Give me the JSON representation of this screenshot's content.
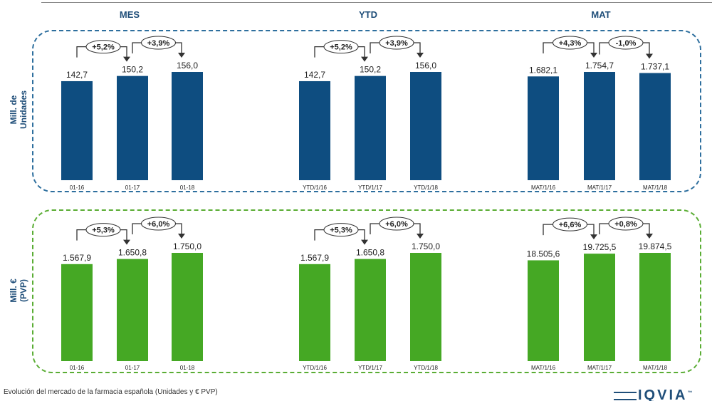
{
  "column_headers": [
    "MES",
    "YTD",
    "MAT"
  ],
  "row_labels": {
    "units": [
      "Mill. de",
      "Unidades"
    ],
    "pvp": [
      "Mill. €",
      "(PVP)"
    ]
  },
  "footer": {
    "caption": "Evolución del mercado de la farmacia española (Unidades y € PVP)"
  },
  "logo": {
    "text": "IQVIA",
    "tm": "™"
  },
  "colors": {
    "units_bar": "#0e4d80",
    "pvp_bar": "#45a824",
    "units_frame": "#2e6f9e",
    "pvp_frame": "#5aad34",
    "header_text": "#1f4e79"
  },
  "chart_data": [
    {
      "type": "bar",
      "row": "units",
      "panel": "MES",
      "categories": [
        "01-16",
        "01-17",
        "01-18"
      ],
      "values": [
        142.7,
        150.2,
        156.0
      ],
      "value_labels": [
        "142,7",
        "150,2",
        "156,0"
      ],
      "growth_labels": [
        "+5,2%",
        "+3,9%"
      ]
    },
    {
      "type": "bar",
      "row": "units",
      "panel": "YTD",
      "categories": [
        "YTD/1/16",
        "YTD/1/17",
        "YTD/1/18"
      ],
      "values": [
        142.7,
        150.2,
        156.0
      ],
      "value_labels": [
        "142,7",
        "150,2",
        "156,0"
      ],
      "growth_labels": [
        "+5,2%",
        "+3,9%"
      ]
    },
    {
      "type": "bar",
      "row": "units",
      "panel": "MAT",
      "categories": [
        "MAT/1/16",
        "MAT/1/17",
        "MAT/1/18"
      ],
      "values": [
        1682.1,
        1754.7,
        1737.1
      ],
      "value_labels": [
        "1.682,1",
        "1.754,7",
        "1.737,1"
      ],
      "growth_labels": [
        "+4,3%",
        "-1,0%"
      ]
    },
    {
      "type": "bar",
      "row": "pvp",
      "panel": "MES",
      "categories": [
        "01-16",
        "01-17",
        "01-18"
      ],
      "values": [
        1567.9,
        1650.8,
        1750.0
      ],
      "value_labels": [
        "1.567,9",
        "1.650,8",
        "1.750,0"
      ],
      "growth_labels": [
        "+5,3%",
        "+6,0%"
      ]
    },
    {
      "type": "bar",
      "row": "pvp",
      "panel": "YTD",
      "categories": [
        "YTD/1/16",
        "YTD/1/17",
        "YTD/1/18"
      ],
      "values": [
        1567.9,
        1650.8,
        1750.0
      ],
      "value_labels": [
        "1.567,9",
        "1.650,8",
        "1.750,0"
      ],
      "growth_labels": [
        "+5,3%",
        "+6,0%"
      ]
    },
    {
      "type": "bar",
      "row": "pvp",
      "panel": "MAT",
      "categories": [
        "MAT/1/16",
        "MAT/1/17",
        "MAT/1/18"
      ],
      "values": [
        18505.6,
        19725.5,
        19874.5
      ],
      "value_labels": [
        "18.505,6",
        "19.725,5",
        "19.874,5"
      ],
      "growth_labels": [
        "+6,6%",
        "+0,8%"
      ]
    }
  ]
}
